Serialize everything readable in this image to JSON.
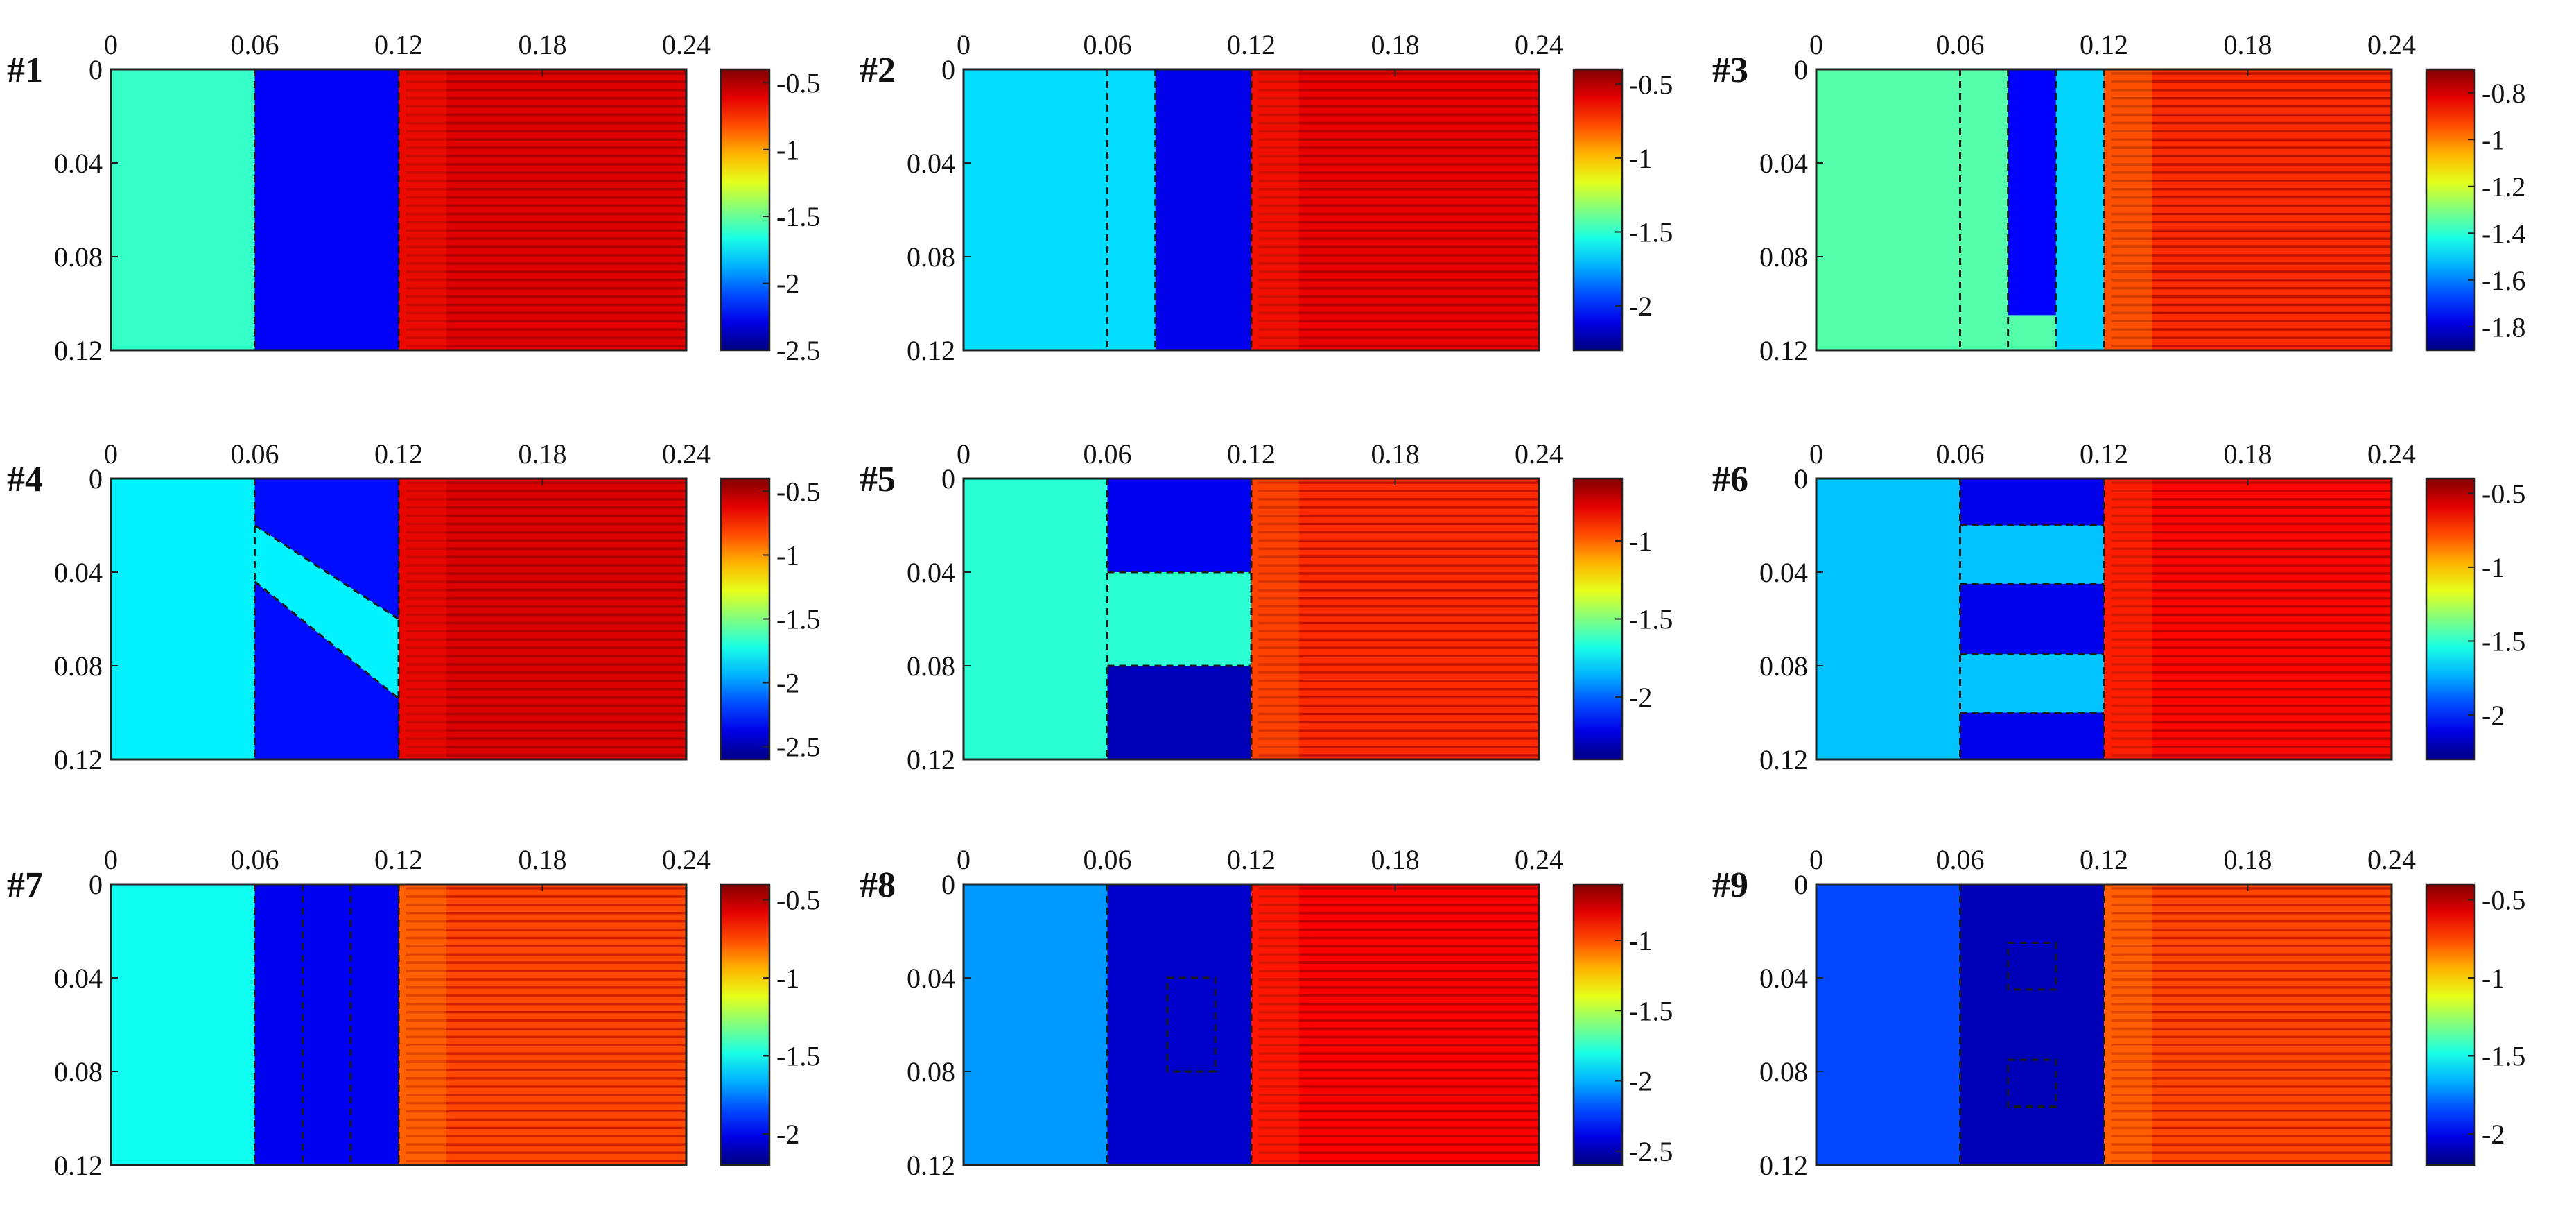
{
  "colors": {
    "deep_blue": "#0a14c8",
    "blue": "#1e4bd8",
    "cyan_blue": "#4aa6ee",
    "cyan": "#5fd2ee",
    "yellow_green": "#b8dc6a",
    "red_orange": "#f04a20",
    "orange": "#f5772e"
  },
  "chart_data": [
    {
      "type": "heatmap",
      "label": "#1",
      "x_ticks": [
        "0",
        "0.06",
        "0.12",
        "0.18",
        "0.24"
      ],
      "y_ticks": [
        "0",
        "0.04",
        "0.08",
        "0.12"
      ],
      "xlim": [
        0,
        0.24
      ],
      "ylim": [
        0,
        0.12
      ],
      "colorbar": {
        "ticks": [
          "-0.5",
          "-1",
          "-1.5",
          "-2",
          "-2.5"
        ],
        "values": [
          -0.5,
          -1,
          -1.5,
          -2,
          -2.5
        ],
        "range": [
          -2.5,
          -0.4
        ]
      },
      "regions": [
        {
          "x": [
            0,
            0.06
          ],
          "y": [
            0,
            0.12
          ],
          "value": -1.6
        },
        {
          "x": [
            0.06,
            0.12
          ],
          "y": [
            0,
            0.12
          ],
          "value": -2.25
        },
        {
          "x": [
            0.12,
            0.24
          ],
          "y": [
            0,
            0.12
          ],
          "value": -0.6
        }
      ],
      "dashed_x": [
        0.06,
        0.12
      ],
      "dashed_shapes": []
    },
    {
      "type": "heatmap",
      "label": "#2",
      "x_ticks": [
        "0",
        "0.06",
        "0.12",
        "0.18",
        "0.24"
      ],
      "y_ticks": [
        "0",
        "0.04",
        "0.08",
        "0.12"
      ],
      "xlim": [
        0,
        0.24
      ],
      "ylim": [
        0,
        0.12
      ],
      "colorbar": {
        "ticks": [
          "-0.5",
          "-1",
          "-1.5",
          "-2"
        ],
        "values": [
          -0.5,
          -1,
          -1.5,
          -2
        ],
        "range": [
          -2.3,
          -0.4
        ]
      },
      "regions": [
        {
          "x": [
            0,
            0.08
          ],
          "y": [
            0,
            0.12
          ],
          "value": -1.65
        },
        {
          "x": [
            0.08,
            0.12
          ],
          "y": [
            0,
            0.12
          ],
          "value": -2.1
        },
        {
          "x": [
            0.12,
            0.24
          ],
          "y": [
            0,
            0.12
          ],
          "value": -0.6
        }
      ],
      "dashed_x": [
        0.06,
        0.08,
        0.12
      ],
      "dashed_shapes": []
    },
    {
      "type": "heatmap",
      "label": "#3",
      "x_ticks": [
        "0",
        "0.06",
        "0.12",
        "0.18",
        "0.24"
      ],
      "y_ticks": [
        "0",
        "0.04",
        "0.08",
        "0.12"
      ],
      "xlim": [
        0,
        0.24
      ],
      "ylim": [
        0,
        0.12
      ],
      "colorbar": {
        "ticks": [
          "-0.8",
          "-1",
          "-1.2",
          "-1.4",
          "-1.6",
          "-1.8"
        ],
        "values": [
          -0.8,
          -1,
          -1.2,
          -1.4,
          -1.6,
          -1.8
        ],
        "range": [
          -1.9,
          -0.7
        ]
      },
      "regions": [
        {
          "x": [
            0,
            0.12
          ],
          "y": [
            0,
            0.12
          ],
          "value": -1.35
        },
        {
          "x": [
            0.08,
            0.1
          ],
          "y": [
            0,
            0.105
          ],
          "value": -1.75
        },
        {
          "x": [
            0.1,
            0.12
          ],
          "y": [
            0,
            0.12
          ],
          "value": -1.5
        },
        {
          "x": [
            0.12,
            0.24
          ],
          "y": [
            0,
            0.12
          ],
          "value": -0.9
        }
      ],
      "dashed_x": [
        0.06,
        0.08,
        0.1,
        0.12
      ],
      "dashed_shapes": []
    },
    {
      "type": "heatmap",
      "label": "#4",
      "x_ticks": [
        "0",
        "0.06",
        "0.12",
        "0.18",
        "0.24"
      ],
      "y_ticks": [
        "0",
        "0.04",
        "0.08",
        "0.12"
      ],
      "xlim": [
        0,
        0.24
      ],
      "ylim": [
        0,
        0.12
      ],
      "colorbar": {
        "ticks": [
          "-0.5",
          "-1",
          "-1.5",
          "-2",
          "-2.5"
        ],
        "values": [
          -0.5,
          -1,
          -1.5,
          -2,
          -2.5
        ],
        "range": [
          -2.6,
          -0.4
        ]
      },
      "regions": [
        {
          "x": [
            0,
            0.06
          ],
          "y": [
            0,
            0.12
          ],
          "value": -1.8
        },
        {
          "x": [
            0.06,
            0.12
          ],
          "y": [
            0,
            0.12
          ],
          "value": -2.3
        },
        {
          "x": [
            0.12,
            0.24
          ],
          "y": [
            0,
            0.12
          ],
          "value": -0.6
        }
      ],
      "band": {
        "points": [
          [
            0.06,
            0.02
          ],
          [
            0.12,
            0.06
          ],
          [
            0.12,
            0.094
          ],
          [
            0.06,
            0.044
          ]
        ],
        "value": -1.8
      },
      "dashed_x": [
        0.06,
        0.12
      ],
      "dashed_shapes": [
        {
          "type": "line",
          "from": [
            0.06,
            0.02
          ],
          "to": [
            0.12,
            0.06
          ]
        },
        {
          "type": "line",
          "from": [
            0.06,
            0.044
          ],
          "to": [
            0.12,
            0.094
          ]
        }
      ]
    },
    {
      "type": "heatmap",
      "label": "#5",
      "x_ticks": [
        "0",
        "0.06",
        "0.12",
        "0.18",
        "0.24"
      ],
      "y_ticks": [
        "0",
        "0.04",
        "0.08",
        "0.12"
      ],
      "xlim": [
        0,
        0.24
      ],
      "ylim": [
        0,
        0.12
      ],
      "colorbar": {
        "ticks": [
          "-1",
          "-1.5",
          "-2"
        ],
        "values": [
          -1,
          -1.5,
          -2
        ],
        "range": [
          -2.4,
          -0.6
        ]
      },
      "regions": [
        {
          "x": [
            0,
            0.12
          ],
          "y": [
            0,
            0.12
          ],
          "value": -1.65
        },
        {
          "x": [
            0.06,
            0.12
          ],
          "y": [
            0,
            0.04
          ],
          "value": -2.2
        },
        {
          "x": [
            0.06,
            0.12
          ],
          "y": [
            0.08,
            0.12
          ],
          "value": -2.3
        },
        {
          "x": [
            0.12,
            0.24
          ],
          "y": [
            0,
            0.12
          ],
          "value": -0.9
        }
      ],
      "dashed_x": [
        0.06,
        0.12
      ],
      "dashed_shapes": [
        {
          "type": "hline",
          "y": 0.04,
          "x": [
            0.06,
            0.12
          ]
        },
        {
          "type": "hline",
          "y": 0.08,
          "x": [
            0.06,
            0.12
          ]
        }
      ]
    },
    {
      "type": "heatmap",
      "label": "#6",
      "x_ticks": [
        "0",
        "0.06",
        "0.12",
        "0.18",
        "0.24"
      ],
      "y_ticks": [
        "0",
        "0.04",
        "0.08",
        "0.12"
      ],
      "xlim": [
        0,
        0.24
      ],
      "ylim": [
        0,
        0.12
      ],
      "colorbar": {
        "ticks": [
          "-0.5",
          "-1",
          "-1.5",
          "-2"
        ],
        "values": [
          -0.5,
          -1,
          -1.5,
          -2
        ],
        "range": [
          -2.3,
          -0.4
        ]
      },
      "regions": [
        {
          "x": [
            0,
            0.12
          ],
          "y": [
            0,
            0.12
          ],
          "value": -1.7
        },
        {
          "x": [
            0.06,
            0.12
          ],
          "y": [
            0,
            0.02
          ],
          "value": -2.1
        },
        {
          "x": [
            0.06,
            0.12
          ],
          "y": [
            0.045,
            0.075
          ],
          "value": -2.1
        },
        {
          "x": [
            0.06,
            0.12
          ],
          "y": [
            0.1,
            0.12
          ],
          "value": -2.1
        },
        {
          "x": [
            0.12,
            0.24
          ],
          "y": [
            0,
            0.12
          ],
          "value": -0.65
        }
      ],
      "dashed_x": [
        0.06,
        0.12
      ],
      "dashed_shapes": [
        {
          "type": "hline",
          "y": 0.02,
          "x": [
            0.06,
            0.12
          ]
        },
        {
          "type": "hline",
          "y": 0.045,
          "x": [
            0.06,
            0.12
          ]
        },
        {
          "type": "hline",
          "y": 0.075,
          "x": [
            0.06,
            0.12
          ]
        },
        {
          "type": "hline",
          "y": 0.1,
          "x": [
            0.06,
            0.12
          ]
        }
      ]
    },
    {
      "type": "heatmap",
      "label": "#7",
      "x_ticks": [
        "0",
        "0.06",
        "0.12",
        "0.18",
        "0.24"
      ],
      "y_ticks": [
        "0",
        "0.04",
        "0.08",
        "0.12"
      ],
      "xlim": [
        0,
        0.24
      ],
      "ylim": [
        0,
        0.12
      ],
      "colorbar": {
        "ticks": [
          "-0.5",
          "-1",
          "-1.5",
          "-2"
        ],
        "values": [
          -0.5,
          -1,
          -1.5,
          -2
        ],
        "range": [
          -2.2,
          -0.4
        ]
      },
      "regions": [
        {
          "x": [
            0,
            0.06
          ],
          "y": [
            0,
            0.12
          ],
          "value": -1.5
        },
        {
          "x": [
            0.06,
            0.12
          ],
          "y": [
            0,
            0.12
          ],
          "value": -2.0
        },
        {
          "x": [
            0.12,
            0.24
          ],
          "y": [
            0,
            0.12
          ],
          "value": -0.75
        }
      ],
      "dashed_x": [
        0.06,
        0.08,
        0.1,
        0.12
      ],
      "dashed_shapes": []
    },
    {
      "type": "heatmap",
      "label": "#8",
      "x_ticks": [
        "0",
        "0.06",
        "0.12",
        "0.18",
        "0.24"
      ],
      "y_ticks": [
        "0",
        "0.04",
        "0.08",
        "0.12"
      ],
      "xlim": [
        0,
        0.24
      ],
      "ylim": [
        0,
        0.12
      ],
      "colorbar": {
        "ticks": [
          "-1",
          "-1.5",
          "-2",
          "-2.5"
        ],
        "values": [
          -1,
          -1.5,
          -2,
          -2.5
        ],
        "range": [
          -2.6,
          -0.6
        ]
      },
      "regions": [
        {
          "x": [
            0,
            0.06
          ],
          "y": [
            0,
            0.12
          ],
          "value": -2.05
        },
        {
          "x": [
            0.06,
            0.12
          ],
          "y": [
            0,
            0.12
          ],
          "value": -2.45
        },
        {
          "x": [
            0.12,
            0.24
          ],
          "y": [
            0,
            0.12
          ],
          "value": -0.85
        }
      ],
      "dashed_x": [
        0.06,
        0.12
      ],
      "dashed_shapes": [
        {
          "type": "rect",
          "x": [
            0.085,
            0.105
          ],
          "y": [
            0.04,
            0.08
          ]
        }
      ]
    },
    {
      "type": "heatmap",
      "label": "#9",
      "x_ticks": [
        "0",
        "0.06",
        "0.12",
        "0.18",
        "0.24"
      ],
      "y_ticks": [
        "0",
        "0.04",
        "0.08",
        "0.12"
      ],
      "xlim": [
        0,
        0.24
      ],
      "ylim": [
        0,
        0.12
      ],
      "colorbar": {
        "ticks": [
          "-0.5",
          "-1",
          "-1.5",
          "-2"
        ],
        "values": [
          -0.5,
          -1,
          -1.5,
          -2
        ],
        "range": [
          -2.2,
          -0.4
        ]
      },
      "regions": [
        {
          "x": [
            0,
            0.06
          ],
          "y": [
            0,
            0.12
          ],
          "value": -1.85
        },
        {
          "x": [
            0.06,
            0.12
          ],
          "y": [
            0,
            0.12
          ],
          "value": -2.1
        },
        {
          "x": [
            0.12,
            0.24
          ],
          "y": [
            0,
            0.12
          ],
          "value": -0.75
        }
      ],
      "dashed_x": [
        0.06,
        0.12
      ],
      "dashed_shapes": [
        {
          "type": "rect",
          "x": [
            0.08,
            0.1
          ],
          "y": [
            0.025,
            0.045
          ]
        },
        {
          "type": "rect",
          "x": [
            0.08,
            0.1
          ],
          "y": [
            0.075,
            0.095
          ]
        }
      ]
    }
  ]
}
